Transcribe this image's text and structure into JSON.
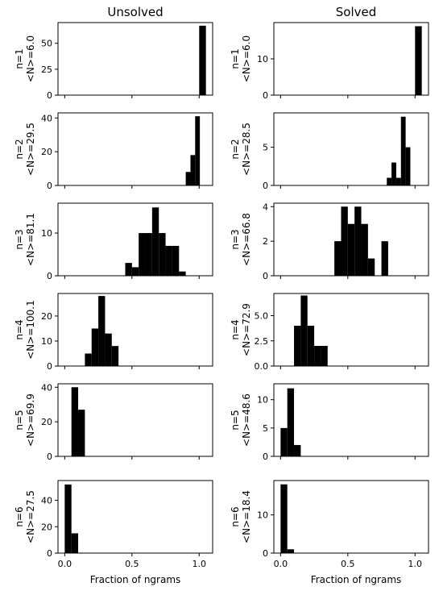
{
  "column_titles": [
    "Unsolved",
    "Solved"
  ],
  "xlabel": "Fraction of ngrams",
  "x_ticks": [
    0.0,
    0.5,
    1.0
  ],
  "x_tick_labels": [
    "0.0",
    "0.5",
    "1.0"
  ],
  "chart_data": [
    {
      "type": "bar",
      "col": 0,
      "row": 0,
      "label_line1": "n=1",
      "label_line2": "<N>=6.0",
      "xlim": [
        -0.05,
        1.1
      ],
      "ylim": [
        0,
        70
      ],
      "y_ticks": [
        0,
        25,
        50
      ],
      "y_tick_labels": [
        "0",
        "25",
        "50"
      ],
      "bar_width": 0.05,
      "bars": [
        {
          "x": 1.0,
          "h": 67
        }
      ]
    },
    {
      "type": "bar",
      "col": 1,
      "row": 0,
      "label_line1": "n=1",
      "label_line2": "<N>=6.0",
      "xlim": [
        -0.05,
        1.1
      ],
      "ylim": [
        0,
        20
      ],
      "y_ticks": [
        0,
        10
      ],
      "y_tick_labels": [
        "0",
        "10"
      ],
      "bar_width": 0.05,
      "bars": [
        {
          "x": 1.0,
          "h": 19
        }
      ]
    },
    {
      "type": "bar",
      "col": 0,
      "row": 1,
      "label_line1": "n=2",
      "label_line2": "<N>=29.5",
      "xlim": [
        -0.05,
        1.1
      ],
      "ylim": [
        0,
        43
      ],
      "y_ticks": [
        0,
        20,
        40
      ],
      "y_tick_labels": [
        "0",
        "20",
        "40"
      ],
      "bar_width": 0.035,
      "bars": [
        {
          "x": 0.9,
          "h": 8
        },
        {
          "x": 0.935,
          "h": 18
        },
        {
          "x": 0.97,
          "h": 41
        }
      ]
    },
    {
      "type": "bar",
      "col": 1,
      "row": 1,
      "label_line1": "n=2",
      "label_line2": "<N>=28.5",
      "xlim": [
        -0.05,
        1.1
      ],
      "ylim": [
        0,
        9.5
      ],
      "y_ticks": [
        0,
        5
      ],
      "y_tick_labels": [
        "0",
        "5"
      ],
      "bar_width": 0.035,
      "bars": [
        {
          "x": 0.79,
          "h": 1
        },
        {
          "x": 0.825,
          "h": 3
        },
        {
          "x": 0.86,
          "h": 1
        },
        {
          "x": 0.895,
          "h": 9
        },
        {
          "x": 0.93,
          "h": 5
        }
      ]
    },
    {
      "type": "bar",
      "col": 0,
      "row": 2,
      "label_line1": "n=3",
      "label_line2": "<N>=81.1",
      "xlim": [
        -0.05,
        1.1
      ],
      "ylim": [
        0,
        17
      ],
      "y_ticks": [
        0,
        10
      ],
      "y_tick_labels": [
        "0",
        "10"
      ],
      "bar_width": 0.05,
      "bars": [
        {
          "x": 0.45,
          "h": 3
        },
        {
          "x": 0.5,
          "h": 2
        },
        {
          "x": 0.55,
          "h": 10
        },
        {
          "x": 0.6,
          "h": 10
        },
        {
          "x": 0.65,
          "h": 16
        },
        {
          "x": 0.7,
          "h": 10
        },
        {
          "x": 0.75,
          "h": 7
        },
        {
          "x": 0.8,
          "h": 7
        },
        {
          "x": 0.85,
          "h": 1
        }
      ]
    },
    {
      "type": "bar",
      "col": 1,
      "row": 2,
      "label_line1": "n=3",
      "label_line2": "<N>=66.8",
      "xlim": [
        -0.05,
        1.1
      ],
      "ylim": [
        0,
        4.2
      ],
      "y_ticks": [
        0,
        2,
        4
      ],
      "y_tick_labels": [
        "0",
        "2",
        "4"
      ],
      "bar_width": 0.05,
      "bars": [
        {
          "x": 0.4,
          "h": 2
        },
        {
          "x": 0.45,
          "h": 4
        },
        {
          "x": 0.5,
          "h": 3
        },
        {
          "x": 0.55,
          "h": 4
        },
        {
          "x": 0.6,
          "h": 3
        },
        {
          "x": 0.65,
          "h": 1
        },
        {
          "x": 0.75,
          "h": 2
        }
      ]
    },
    {
      "type": "bar",
      "col": 0,
      "row": 3,
      "label_line1": "n=4",
      "label_line2": "<N>=100.1",
      "xlim": [
        -0.05,
        1.1
      ],
      "ylim": [
        0,
        29
      ],
      "y_ticks": [
        0,
        10,
        20
      ],
      "y_tick_labels": [
        "0",
        "10",
        "20"
      ],
      "bar_width": 0.05,
      "bars": [
        {
          "x": 0.15,
          "h": 5
        },
        {
          "x": 0.2,
          "h": 15
        },
        {
          "x": 0.25,
          "h": 28
        },
        {
          "x": 0.3,
          "h": 13
        },
        {
          "x": 0.35,
          "h": 8
        }
      ]
    },
    {
      "type": "bar",
      "col": 1,
      "row": 3,
      "label_line1": "n=4",
      "label_line2": "<N>=72.9",
      "xlim": [
        -0.05,
        1.1
      ],
      "ylim": [
        0,
        7.2
      ],
      "y_ticks": [
        0,
        2.5,
        5.0
      ],
      "y_tick_labels": [
        "0.0",
        "2.5",
        "5.0"
      ],
      "bar_width": 0.05,
      "bars": [
        {
          "x": 0.1,
          "h": 4
        },
        {
          "x": 0.15,
          "h": 7
        },
        {
          "x": 0.2,
          "h": 4
        },
        {
          "x": 0.25,
          "h": 2
        },
        {
          "x": 0.3,
          "h": 2
        }
      ]
    },
    {
      "type": "bar",
      "col": 0,
      "row": 4,
      "label_line1": "n=5",
      "label_line2": "<N>=69.9",
      "xlim": [
        -0.05,
        1.1
      ],
      "ylim": [
        0,
        42
      ],
      "y_ticks": [
        0,
        20,
        40
      ],
      "y_tick_labels": [
        "0",
        "20",
        "40"
      ],
      "bar_width": 0.05,
      "bars": [
        {
          "x": 0.05,
          "h": 40
        },
        {
          "x": 0.1,
          "h": 27
        }
      ]
    },
    {
      "type": "bar",
      "col": 1,
      "row": 4,
      "label_line1": "n=5",
      "label_line2": "<N>=48.6",
      "xlim": [
        -0.05,
        1.1
      ],
      "ylim": [
        0,
        12.8
      ],
      "y_ticks": [
        0,
        5,
        10
      ],
      "y_tick_labels": [
        "0",
        "5",
        "10"
      ],
      "bar_width": 0.05,
      "bars": [
        {
          "x": 0.0,
          "h": 5
        },
        {
          "x": 0.05,
          "h": 12
        },
        {
          "x": 0.1,
          "h": 2
        }
      ]
    },
    {
      "type": "bar",
      "col": 0,
      "row": 5,
      "label_line1": "n=6",
      "label_line2": "<N>=27.5",
      "xlim": [
        -0.05,
        1.1
      ],
      "ylim": [
        0,
        55
      ],
      "y_ticks": [
        0,
        20,
        40
      ],
      "y_tick_labels": [
        "0",
        "20",
        "40"
      ],
      "bar_width": 0.05,
      "bars": [
        {
          "x": 0.0,
          "h": 52
        },
        {
          "x": 0.05,
          "h": 15
        }
      ]
    },
    {
      "type": "bar",
      "col": 1,
      "row": 5,
      "label_line1": "n=6",
      "label_line2": "<N>=18.4",
      "xlim": [
        -0.05,
        1.1
      ],
      "ylim": [
        0,
        19
      ],
      "y_ticks": [
        0,
        10
      ],
      "y_tick_labels": [
        "0",
        "10"
      ],
      "bar_width": 0.05,
      "bars": [
        {
          "x": 0.0,
          "h": 18
        },
        {
          "x": 0.05,
          "h": 1
        }
      ]
    }
  ]
}
